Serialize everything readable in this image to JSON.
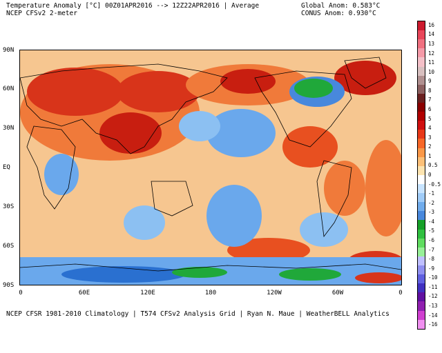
{
  "header": {
    "title": "Temperature Anomaly [°C] 00Z01APR2016 --> 12Z22APR2016 | Average",
    "subtitle": "NCEP CFSv2 2-meter",
    "global_anom": "Global Anom: 0.583°C",
    "conus_anom": "CONUS Anom: 0.930°C"
  },
  "footer": "NCEP CFSR 1981-2010 Climatology | T574 CFSv2 Analysis Grid | Ryan N. Maue | WeatherBELL Analytics",
  "axes": {
    "lat_labels": [
      "90N",
      "60N",
      "30N",
      "EQ",
      "30S",
      "60S",
      "90S"
    ],
    "lon_labels": [
      "0",
      "60E",
      "120E",
      "180",
      "120W",
      "60W",
      "0"
    ]
  },
  "colorbar": {
    "labels": [
      "16",
      "14",
      "13",
      "12",
      "11",
      "10",
      "9",
      "8",
      "7",
      "6",
      "5",
      "4",
      "3",
      "2",
      "1",
      "0.5",
      "0",
      "-0.5",
      "-1",
      "-2",
      "-3",
      "-4",
      "-5",
      "-6",
      "-7",
      "-8",
      "-9",
      "-10",
      "-11",
      "-12",
      "-13",
      "-14",
      "-16"
    ],
    "colors": [
      "#cc1a2e",
      "#e8465a",
      "#f07080",
      "#f59aa8",
      "#f4c0c8",
      "#d8c0c0",
      "#b09090",
      "#8c6060",
      "#6a2020",
      "#8a0000",
      "#b00000",
      "#d01010",
      "#e83818",
      "#f86828",
      "#fa9848",
      "#fcc078",
      "#fde4b0",
      "#ffffff",
      "#c8e4ff",
      "#a0ccf8",
      "#70acec",
      "#4888dc",
      "#16a028",
      "#30c040",
      "#60dc60",
      "#98f098",
      "#c0c0ff",
      "#9090f0",
      "#6060e0",
      "#4030c0",
      "#6010a0",
      "#9020b0",
      "#d040d0",
      "#f090f0"
    ]
  },
  "colors": {
    "ocean_base": "#f6c690",
    "warm": "#f07a3a",
    "hot": "#c81e10",
    "cool": "#6aa8ec",
    "cold": "#2a70d0",
    "verycold": "#20a83a",
    "land_outline": "#000000"
  }
}
